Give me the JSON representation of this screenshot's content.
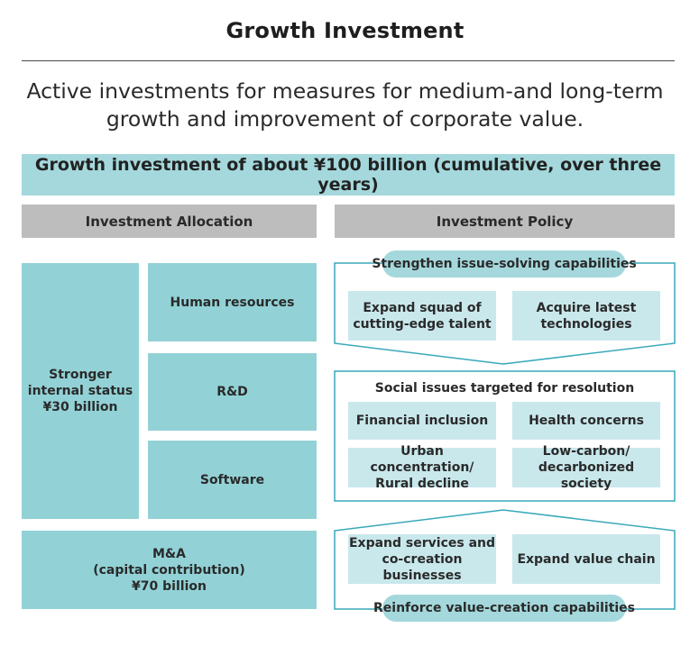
{
  "title": "Growth Investment",
  "subtitle": "Active investments for measures for medium-and long-term growth and improvement of corporate value.",
  "banner": "Growth investment of about ¥100 billion (cumulative, over three years)",
  "allocation": {
    "header": "Investment Allocation",
    "internal": "Stronger\ninternal status\n¥30 billion",
    "human_resources": "Human resources",
    "rnd": "R&D",
    "software": "Software",
    "mna": "M&A\n(capital contribution)\n¥70 billion"
  },
  "policy": {
    "header": "Investment Policy",
    "strengthen": {
      "label": "Strengthen issue-solving capabilities",
      "items": [
        "Expand squad of\ncutting-edge talent",
        "Acquire latest\ntechnologies"
      ]
    },
    "social": {
      "label": "Social issues targeted for resolution",
      "items": [
        "Financial inclusion",
        "Health concerns",
        "Urban concentration/\nRural decline",
        "Low-carbon/\ndecarbonized society"
      ]
    },
    "reinforce": {
      "label": "Reinforce value-creation capabilities",
      "items": [
        "Expand services and\nco-creation businesses",
        "Expand value chain"
      ]
    }
  },
  "colors": {
    "teal_box": "#92d2d7",
    "light_teal": "#a4d8dc",
    "pale_teal": "#c9e8ec",
    "frame_line": "#38a9b9",
    "header_gray": "#bdbdbd"
  }
}
